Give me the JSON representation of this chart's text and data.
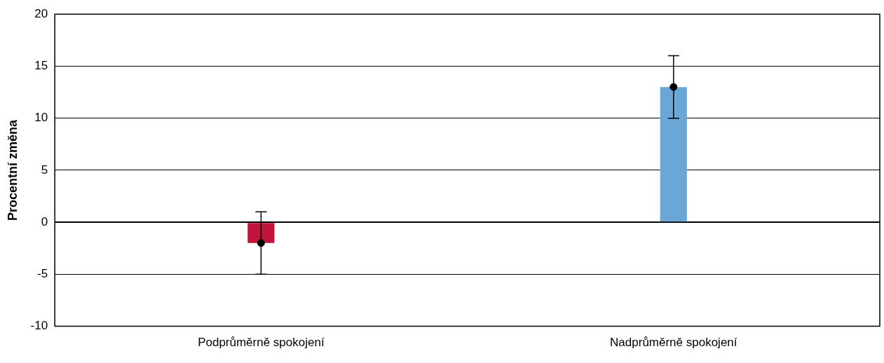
{
  "chart_data": {
    "type": "bar",
    "ylabel": "Procentní změna",
    "categories": [
      "Podprůměrně spokojení",
      "Nadprůměrně spokojení"
    ],
    "series": [
      {
        "values": [
          -2,
          13
        ],
        "colors": [
          "#c0143c",
          "#6aa7d6"
        ],
        "errors": [
          [
            -5,
            1
          ],
          [
            10,
            16
          ]
        ]
      },
      {
        "type": "scatter",
        "x": [
          "Podprůměrně spokojení",
          "Nadprůměrně spokojení"
        ],
        "values": [
          -2,
          13
        ],
        "color": "#000000",
        "marker": "circle"
      }
    ],
    "ylim": [
      -10,
      20
    ],
    "yticks": [
      -10,
      -5,
      0,
      5,
      10,
      15,
      20
    ],
    "grid": "y",
    "legend": false
  }
}
